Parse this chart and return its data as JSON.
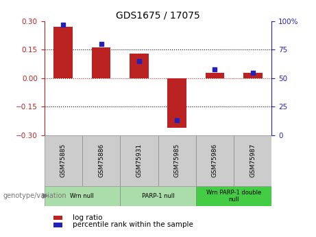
{
  "title": "GDS1675 / 17075",
  "samples": [
    "GSM75885",
    "GSM75886",
    "GSM75931",
    "GSM75985",
    "GSM75986",
    "GSM75987"
  ],
  "log_ratio": [
    0.27,
    0.162,
    0.13,
    -0.262,
    0.03,
    0.028
  ],
  "percentile_rank": [
    97,
    80,
    65,
    13,
    58,
    55
  ],
  "bar_color": "#bb2222",
  "dot_color": "#2222bb",
  "ylim_left": [
    -0.3,
    0.3
  ],
  "ylim_right": [
    0,
    100
  ],
  "yticks_left": [
    -0.3,
    -0.15,
    0,
    0.15,
    0.3
  ],
  "yticks_right": [
    0,
    25,
    50,
    75,
    100
  ],
  "ytick_labels_right": [
    "0",
    "25",
    "50",
    "75",
    "100%"
  ],
  "hlines_dotted": [
    0.15,
    -0.15
  ],
  "hline_zero_color": "#bb2222",
  "groups": [
    {
      "label": "Wrn null",
      "start": 0,
      "end": 2,
      "color": "#aaddaa"
    },
    {
      "label": "PARP-1 null",
      "start": 2,
      "end": 4,
      "color": "#aaddaa"
    },
    {
      "label": "Wrn PARP-1 double\nnull",
      "start": 4,
      "end": 6,
      "color": "#44cc44"
    }
  ],
  "legend_log_ratio": "log ratio",
  "legend_percentile": "percentile rank within the sample",
  "genotype_label": "genotype/variation",
  "bar_width": 0.5,
  "sample_box_color": "#cccccc",
  "title_fontsize": 10
}
